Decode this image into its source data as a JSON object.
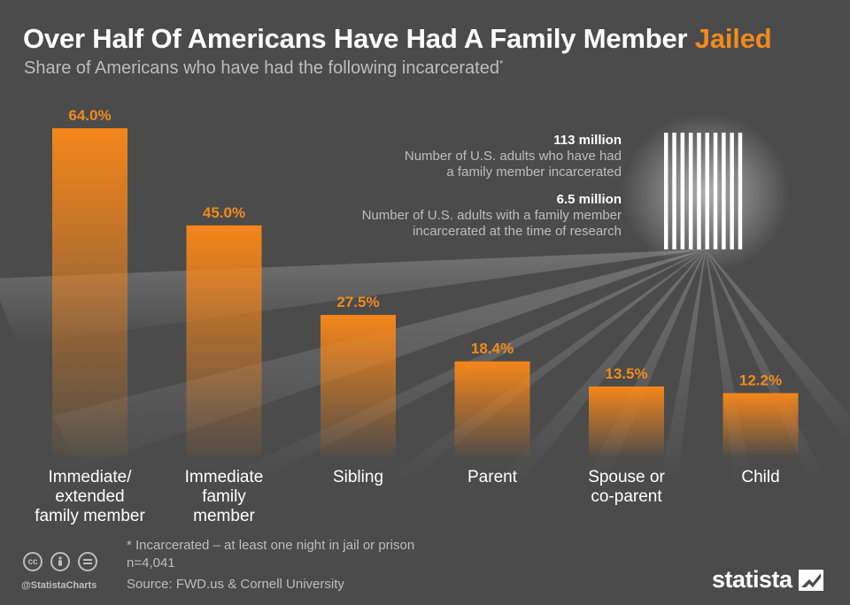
{
  "title_main": "Over Half Of Americans Have Had A Family Member",
  "title_accent": "Jailed",
  "subtitle": "Share of Americans who have had the following incarcerated",
  "subtitle_mark": "*",
  "stats": [
    {
      "value": "113 million",
      "line1": "Number of U.S. adults who have had",
      "line2": "a family member incarcerated"
    },
    {
      "value": "6.5 million",
      "line1": "Number of U.S. adults with a family member",
      "line2": "incarcerated at the time of research"
    }
  ],
  "footnote": "* Incarcerated – at least one night in jail or prison",
  "sample": "n=4,041",
  "source": "Source: FWD.us & Cornell University",
  "handle": "@StatistaCharts",
  "logo": "statista",
  "icons": [
    "cc-icon",
    "by-icon",
    "nd-icon"
  ],
  "colors": {
    "background": "#4b4b4b",
    "accent": "#f28a1e",
    "text_muted": "#bdbdbd"
  },
  "chart_data": {
    "type": "bar",
    "categories": [
      [
        "Immediate/",
        "extended",
        "family member"
      ],
      [
        "Immediate",
        "family",
        "member"
      ],
      [
        "Sibling"
      ],
      [
        "Parent"
      ],
      [
        "Spouse or",
        "co-parent"
      ],
      [
        "Child"
      ]
    ],
    "values": [
      64.0,
      45.0,
      27.5,
      18.4,
      13.5,
      12.2
    ],
    "value_labels": [
      "64.0%",
      "45.0%",
      "27.5%",
      "18.4%",
      "13.5%",
      "12.2%"
    ],
    "unit": "%",
    "ylim": [
      0,
      64
    ],
    "grid": false,
    "legend": "none"
  }
}
